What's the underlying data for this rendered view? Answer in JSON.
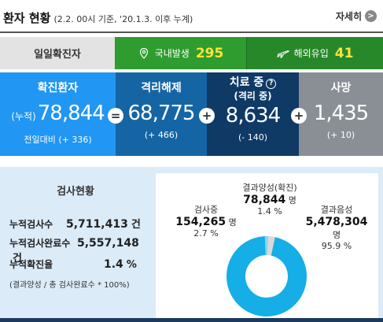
{
  "header": {
    "title": "환자 현황",
    "subtitle": "(2.2. 00시 기준, '20.1.3. 이후 누계)",
    "more_label": "자세히",
    "more_icon": ">"
  },
  "daily": {
    "label": "일일확진자",
    "domestic_label": "국내발생",
    "domestic_value": "295",
    "overseas_label": "해외유입",
    "overseas_value": "41",
    "accent": "#ffe23b"
  },
  "stats": {
    "confirmed": {
      "title": "확진환자",
      "prefix": "(누적)",
      "value": "78,844",
      "delta": "전일대비 (+ 336)"
    },
    "released": {
      "title": "격리해제",
      "value": "68,775",
      "delta": "(+ 466)"
    },
    "treating": {
      "title": "치료 중",
      "help": "?",
      "subtitle": "(격리 중)",
      "value": "8,634",
      "delta": "(- 140)"
    },
    "deaths": {
      "title": "사망",
      "value": "1,435",
      "delta": "(+ 10)"
    },
    "ops": {
      "equals": "=",
      "plus": "+"
    }
  },
  "tests": {
    "title": "검사현황",
    "rows": [
      {
        "label": "누적검사수",
        "value": "5,711,413",
        "unit": "건"
      },
      {
        "label": "누적검사완료수",
        "value": "5,557,148",
        "unit": "건"
      },
      {
        "label": "누적확진율",
        "value": "1.4",
        "unit": "%"
      }
    ],
    "note": "(결과양성 / 총 검사완료수 * 100%)"
  },
  "donut": {
    "positive": {
      "label": "결과양성(확진)",
      "value": "78,844",
      "unit": "명",
      "pct": "1.4 %",
      "share": 1.4
    },
    "testing": {
      "label": "검사중",
      "value": "154,265",
      "unit": "명",
      "pct": "2.7 %",
      "share": 2.7
    },
    "negative": {
      "label": "결과음성",
      "value": "5,478,304",
      "unit": "명",
      "pct": "95.9 %",
      "share": 95.9
    },
    "colors": {
      "negative": "#15aee6",
      "positive": "#8bd4f0",
      "testing": "#d9d9d9"
    }
  }
}
